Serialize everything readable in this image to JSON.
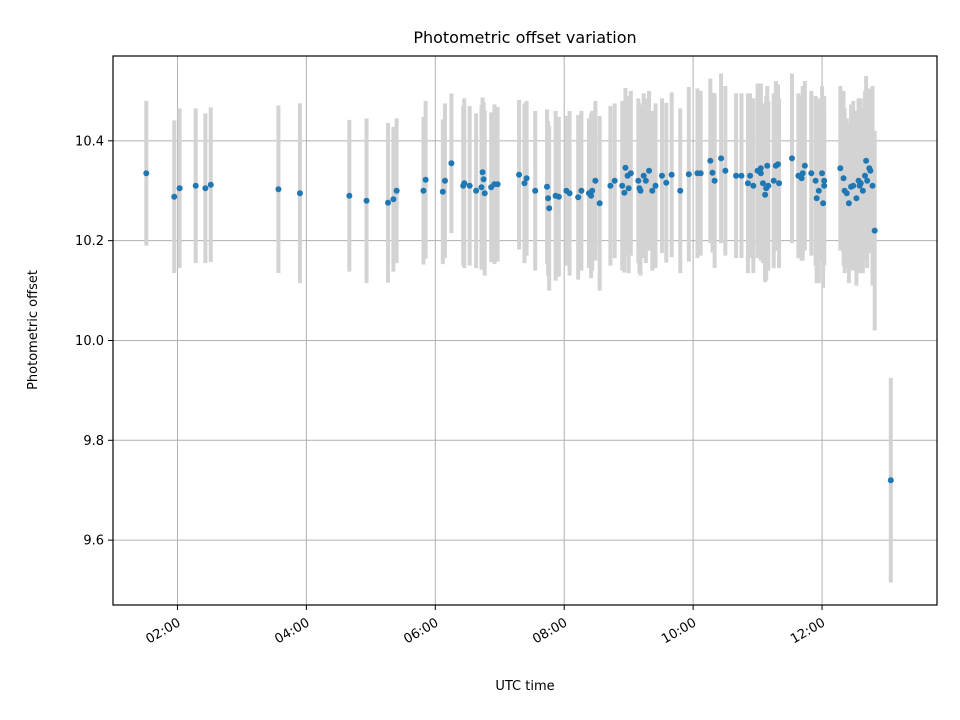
{
  "chart_data": {
    "type": "scatter",
    "title": "Photometric offset variation",
    "xlabel": "UTC time",
    "ylabel": "Photometric offset",
    "x_unit": "hours UTC",
    "xlim": [
      "01:00",
      "13:47"
    ],
    "ylim": [
      9.47,
      10.57
    ],
    "x_ticks": [
      "02:00",
      "04:00",
      "06:00",
      "08:00",
      "10:00",
      "12:00"
    ],
    "y_ticks": [
      9.6,
      9.8,
      10.0,
      10.2,
      10.4
    ],
    "y_tick_labels": [
      "9.6",
      "9.8",
      "10.0",
      "10.2",
      "10.4"
    ],
    "grid": true,
    "colors": {
      "points": "#1f77b4",
      "errorbars": "#d3d3d3",
      "grid": "#b0b0b0"
    },
    "series": [
      {
        "x": [
          "01:31",
          "01:57",
          "02:02",
          "02:17",
          "02:26",
          "02:31",
          "03:34",
          "03:54",
          "04:40",
          "04:56",
          "05:16",
          "05:21",
          "05:24",
          "05:49",
          "05:51",
          "06:07",
          "06:09",
          "06:15",
          "06:26",
          "06:27",
          "06:32",
          "06:38",
          "06:43",
          "06:44",
          "06:45",
          "06:46",
          "06:52",
          "06:55",
          "06:58",
          "07:18",
          "07:23",
          "07:25",
          "07:33",
          "07:44",
          "07:45",
          "07:46",
          "07:52",
          "07:55",
          "08:02",
          "08:05",
          "08:13",
          "08:16",
          "08:23",
          "08:25",
          "08:26",
          "08:29",
          "08:33",
          "08:43",
          "08:47",
          "08:54",
          "08:56",
          "08:57",
          "08:59",
          "09:00",
          "09:02",
          "09:09",
          "09:10",
          "09:11",
          "09:14",
          "09:16",
          "09:19",
          "09:22",
          "09:25",
          "09:31",
          "09:35",
          "09:40",
          "09:48",
          "09:56",
          "10:04",
          "10:07",
          "10:16",
          "10:18",
          "10:20",
          "10:26",
          "10:30",
          "10:40",
          "10:45",
          "10:51",
          "10:53",
          "10:56",
          "11:00",
          "11:03",
          "11:03",
          "11:05",
          "11:07",
          "11:08",
          "11:09",
          "11:10",
          "11:15",
          "11:17",
          "11:19",
          "11:20",
          "11:32",
          "11:38",
          "11:41",
          "11:42",
          "11:44",
          "11:50",
          "11:54",
          "11:55",
          "11:57",
          "12:00",
          "12:01",
          "12:02",
          "12:02",
          "12:17",
          "12:20",
          "12:21",
          "12:23",
          "12:25",
          "12:27",
          "12:29",
          "12:32",
          "12:34",
          "12:35",
          "12:36",
          "12:38",
          "12:40",
          "12:41",
          "12:42",
          "12:44",
          "12:45",
          "12:47",
          "12:49",
          "13:04"
        ],
        "y": [
          10.335,
          10.288,
          10.305,
          10.31,
          10.305,
          10.312,
          10.303,
          10.295,
          10.29,
          10.28,
          10.276,
          10.283,
          10.3,
          10.3,
          10.322,
          10.298,
          10.32,
          10.355,
          10.31,
          10.315,
          10.31,
          10.3,
          10.307,
          10.337,
          10.323,
          10.295,
          10.307,
          10.313,
          10.313,
          10.332,
          10.315,
          10.325,
          10.3,
          10.308,
          10.285,
          10.265,
          10.29,
          10.288,
          10.3,
          10.295,
          10.287,
          10.3,
          10.295,
          10.29,
          10.3,
          10.32,
          10.275,
          10.31,
          10.32,
          10.31,
          10.296,
          10.346,
          10.33,
          10.305,
          10.335,
          10.32,
          10.305,
          10.3,
          10.33,
          10.32,
          10.34,
          10.3,
          10.31,
          10.33,
          10.316,
          10.332,
          10.3,
          10.333,
          10.335,
          10.335,
          10.36,
          10.336,
          10.32,
          10.365,
          10.34,
          10.33,
          10.33,
          10.315,
          10.33,
          10.31,
          10.34,
          10.335,
          10.345,
          10.315,
          10.292,
          10.305,
          10.35,
          10.31,
          10.32,
          10.35,
          10.353,
          10.315,
          10.365,
          10.33,
          10.325,
          10.335,
          10.35,
          10.335,
          10.32,
          10.285,
          10.3,
          10.335,
          10.275,
          10.31,
          10.32,
          10.345,
          10.325,
          10.3,
          10.295,
          10.275,
          10.308,
          10.31,
          10.285,
          10.32,
          10.31,
          10.315,
          10.3,
          10.33,
          10.36,
          10.32,
          10.345,
          10.34,
          10.31,
          10.22,
          9.72
        ],
        "err": [
          0.145,
          0.153,
          0.16,
          0.155,
          0.15,
          0.155,
          0.168,
          0.18,
          0.152,
          0.165,
          0.16,
          0.145,
          0.145,
          0.148,
          0.158,
          0.145,
          0.155,
          0.14,
          0.16,
          0.17,
          0.16,
          0.155,
          0.165,
          0.15,
          0.155,
          0.165,
          0.15,
          0.16,
          0.155,
          0.15,
          0.16,
          0.155,
          0.16,
          0.155,
          0.155,
          0.165,
          0.17,
          0.16,
          0.15,
          0.165,
          0.165,
          0.16,
          0.15,
          0.165,
          0.16,
          0.16,
          0.175,
          0.16,
          0.155,
          0.17,
          0.16,
          0.16,
          0.16,
          0.17,
          0.165,
          0.165,
          0.17,
          0.17,
          0.165,
          0.165,
          0.16,
          0.16,
          0.165,
          0.155,
          0.16,
          0.165,
          0.165,
          0.175,
          0.17,
          0.165,
          0.165,
          0.16,
          0.175,
          0.17,
          0.17,
          0.165,
          0.165,
          0.18,
          0.165,
          0.175,
          0.175,
          0.175,
          0.17,
          0.16,
          0.175,
          0.185,
          0.16,
          0.17,
          0.175,
          0.17,
          0.16,
          0.17,
          0.17,
          0.165,
          0.165,
          0.175,
          0.17,
          0.165,
          0.17,
          0.17,
          0.185,
          0.175,
          0.17,
          0.16,
          0.17,
          0.165,
          0.175,
          0.165,
          0.15,
          0.16,
          0.165,
          0.17,
          0.175,
          0.165,
          0.175,
          0.17,
          0.165,
          0.17,
          0.17,
          0.175,
          0.16,
          0.165,
          0.2,
          0.2,
          0.205
        ]
      }
    ]
  }
}
